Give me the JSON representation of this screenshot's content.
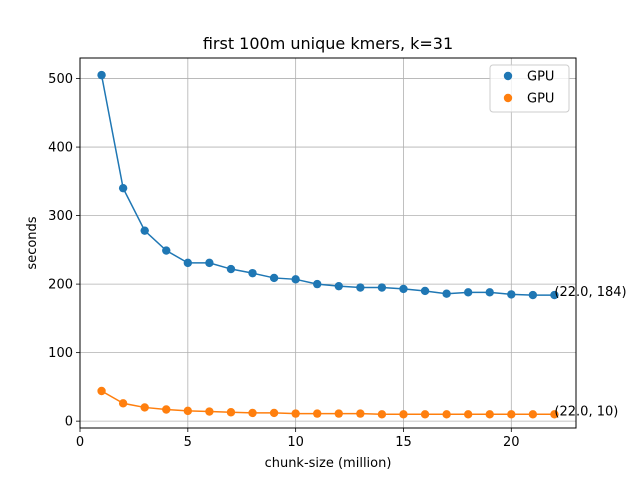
{
  "chart_data": {
    "type": "line",
    "title": "first 100m unique kmers, k=31",
    "xlabel": "chunk-size (million)",
    "ylabel": "seconds",
    "xlim": [
      0,
      23
    ],
    "ylim": [
      -10,
      530
    ],
    "xticks": [
      0,
      5,
      10,
      15,
      20
    ],
    "yticks": [
      0,
      100,
      200,
      300,
      400,
      500
    ],
    "grid": true,
    "legend_position": "top-right",
    "x": [
      1,
      2,
      3,
      4,
      5,
      6,
      7,
      8,
      9,
      10,
      11,
      12,
      13,
      14,
      15,
      16,
      17,
      18,
      19,
      20,
      21,
      22
    ],
    "series": [
      {
        "name": "GPU",
        "color": "#1f77b4",
        "values": [
          505,
          340,
          278,
          249,
          231,
          231,
          222,
          216,
          209,
          207,
          200,
          197,
          195,
          195,
          193,
          190,
          186,
          188,
          188,
          185,
          184,
          184
        ]
      },
      {
        "name": "GPU",
        "color": "#ff7f0e",
        "values": [
          44,
          26,
          20,
          17,
          15,
          14,
          13,
          12,
          12,
          11,
          11,
          11,
          11,
          10,
          10,
          10,
          10,
          10,
          10,
          10,
          10,
          10
        ]
      }
    ],
    "annotations": [
      {
        "x": 22,
        "y": 184,
        "text": "(22.0, 184)"
      },
      {
        "x": 22,
        "y": 10,
        "text": "(22.0, 10)"
      }
    ]
  }
}
